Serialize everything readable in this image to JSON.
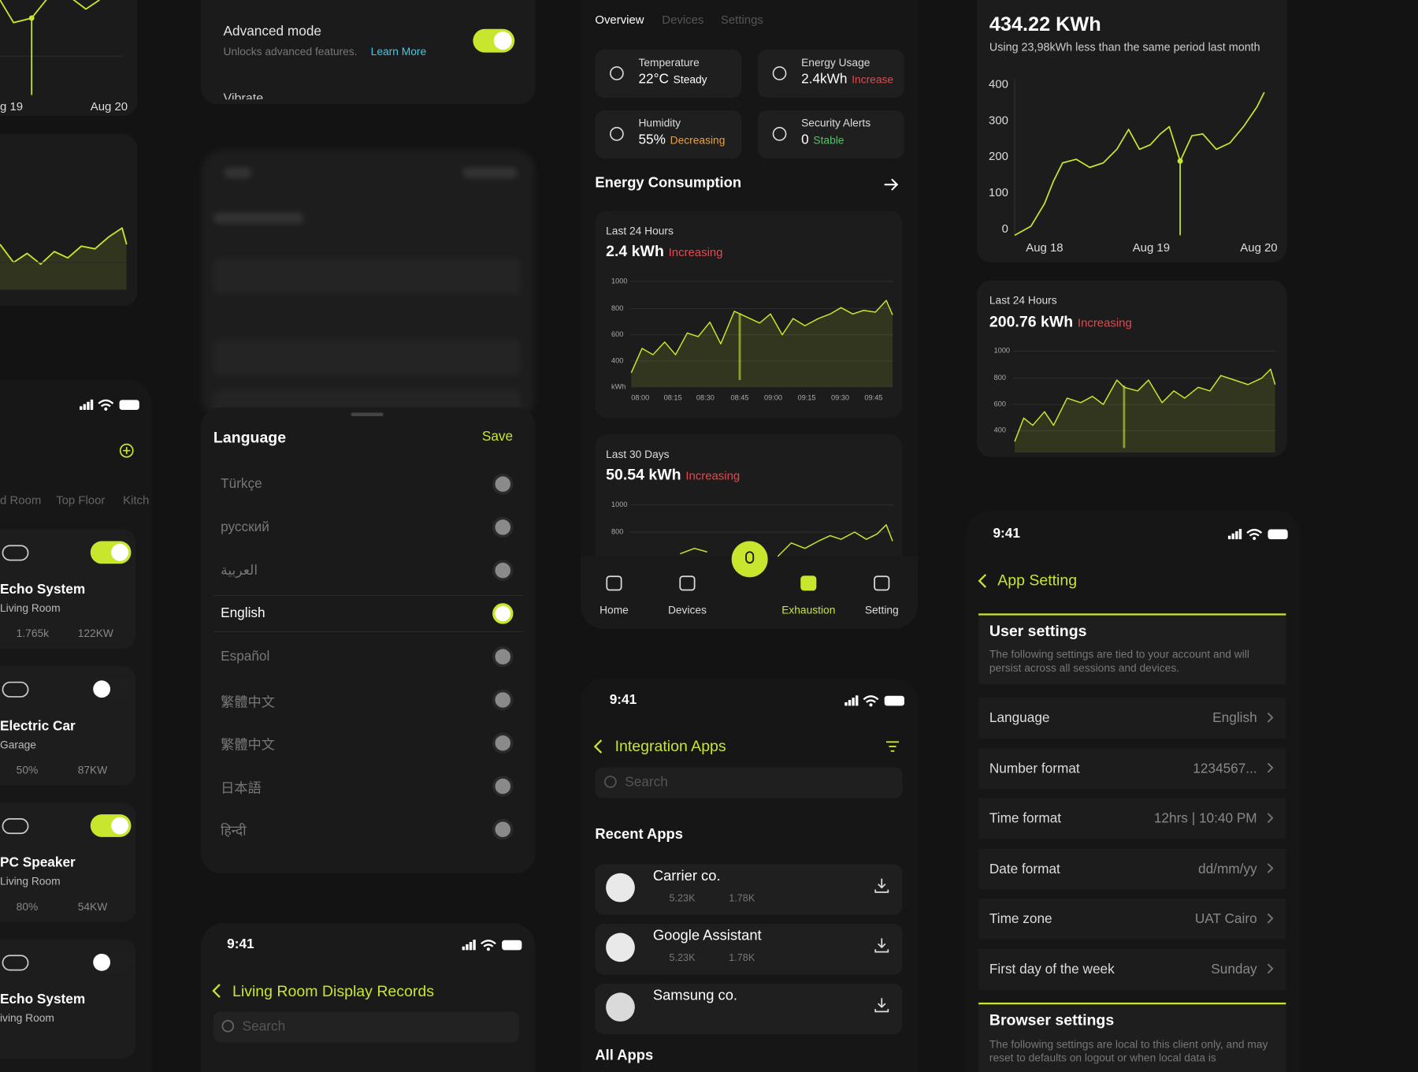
{
  "left_panel": {
    "chart_x_labels": [
      "g 19",
      "Aug 20"
    ],
    "rooms": [
      "d Room",
      "Top Floor",
      "Kitch"
    ],
    "devices": [
      {
        "name": "Echo System",
        "room": "Living Room",
        "stat1": "1.765k",
        "stat2": "122KW",
        "on": true
      },
      {
        "name": "Electric Car",
        "room": "Garage",
        "stat1": "50%",
        "stat2": "87KW",
        "on": false
      },
      {
        "name": "PC Speaker",
        "room": "Living Room",
        "stat1": "80%",
        "stat2": "54KW",
        "on": true
      },
      {
        "name": "Echo System",
        "room": "iving Room",
        "on": false
      }
    ]
  },
  "settings_panel": {
    "advanced_title": "Advanced mode",
    "advanced_desc": "Unlocks advanced features.",
    "learn_more": "Learn More",
    "vibrate": "Vibrate"
  },
  "language_sheet": {
    "title": "Language",
    "save": "Save",
    "options": [
      "Türkçe",
      "русский",
      "العربية",
      "English",
      "Español",
      "繁體中文",
      "繁體中文",
      "日本語",
      "हिन्दी"
    ],
    "selected": 3
  },
  "records_screen": {
    "time": "9:41",
    "title": "Living Room Display Records",
    "search": "Search"
  },
  "dashboard": {
    "tabs": [
      "Overview",
      "Devices",
      "Settings"
    ],
    "stats": [
      {
        "label": "Temperature",
        "value": "22°C",
        "status": "Steady",
        "status_color": "#ffffff"
      },
      {
        "label": "Energy Usage",
        "value": "2.4kWh",
        "status": "Increase",
        "status_color": "#e5484d"
      },
      {
        "label": "Humidity",
        "value": "55%",
        "status": "Decreasing",
        "status_color": "#e9a23b"
      },
      {
        "label": "Security Alerts",
        "value": "0",
        "status": "Stable",
        "status_color": "#4cc764"
      }
    ],
    "section": "Energy Consumption",
    "charts": [
      {
        "period": "Last 24 Hours",
        "value": "2.4 kWh",
        "status": "Increasing",
        "yticks": [
          "1000",
          "800",
          "600",
          "400",
          "kWh"
        ],
        "xticks": [
          "08:00",
          "08:15",
          "08:30",
          "08:45",
          "09:00",
          "09:15",
          "09:30",
          "09:45"
        ]
      },
      {
        "period": "Last 30 Days",
        "value": "50.54 kWh",
        "status": "Increasing",
        "yticks": [
          "1000",
          "800"
        ]
      }
    ],
    "nav": [
      "Home",
      "Devices",
      "Exhaustion",
      "Setting"
    ],
    "nav_active": 2
  },
  "integration_screen": {
    "time": "9:41",
    "title": "Integration Apps",
    "search": "Search",
    "recent": "Recent Apps",
    "apps": [
      {
        "name": "Carrier co.",
        "likes": "5.23K",
        "downloads": "1.78K"
      },
      {
        "name": "Google Assistant",
        "likes": "5.23K",
        "downloads": "1.78K"
      },
      {
        "name": "Samsung co."
      }
    ],
    "all": "All Apps"
  },
  "energy_panel": {
    "total": "434.22 KWh",
    "note": "Using 23,98kWh less than the same period last month",
    "yticks": [
      "400",
      "300",
      "200",
      "100",
      "0"
    ],
    "xticks": [
      "Aug 18",
      "Aug 19",
      "Aug 20"
    ],
    "period": "Last 24 Hours",
    "value": "200.76 kWh",
    "status": "Increasing",
    "yticks2": [
      "1000",
      "800",
      "600",
      "400"
    ]
  },
  "app_setting_screen": {
    "time": "9:41",
    "title": "App Setting",
    "user_title": "User settings",
    "user_desc": "The following settings are tied to your account and will persist across all sessions and devices.",
    "rows": [
      {
        "label": "Language",
        "value": "English"
      },
      {
        "label": "Number format",
        "value": "1234567..."
      },
      {
        "label": "Time format",
        "value": "12hrs | 10:40 PM"
      },
      {
        "label": "Date format",
        "value": "dd/mm/yy"
      },
      {
        "label": "Time zone",
        "value": "UAT Cairo"
      },
      {
        "label": "First day of the week",
        "value": "Sunday"
      }
    ],
    "browser_title": "Browser settings",
    "browser_desc": "The following settings are local to this client only, and may reset to defaults on logout or when local data is"
  }
}
